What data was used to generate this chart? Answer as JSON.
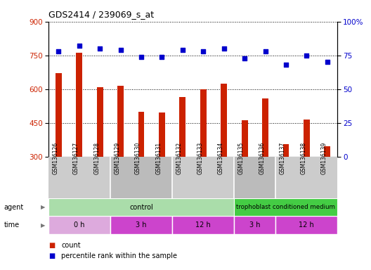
{
  "title": "GDS2414 / 239069_s_at",
  "samples": [
    "GSM136126",
    "GSM136127",
    "GSM136128",
    "GSM136129",
    "GSM136130",
    "GSM136131",
    "GSM136132",
    "GSM136133",
    "GSM136134",
    "GSM136135",
    "GSM136136",
    "GSM136137",
    "GSM136138",
    "GSM136139"
  ],
  "counts": [
    670,
    762,
    610,
    615,
    500,
    497,
    565,
    600,
    625,
    462,
    560,
    355,
    465,
    345
  ],
  "percentiles": [
    78,
    82,
    80,
    79,
    74,
    74,
    79,
    78,
    80,
    73,
    78,
    68,
    75,
    70
  ],
  "ylim_left": [
    300,
    900
  ],
  "ylim_right": [
    0,
    100
  ],
  "yticks_left": [
    300,
    450,
    600,
    750,
    900
  ],
  "yticks_right": [
    0,
    25,
    50,
    75,
    100
  ],
  "bar_color": "#cc2200",
  "dot_color": "#0000cc",
  "agent_groups": [
    {
      "label": "control",
      "start": 0,
      "end": 9,
      "color": "#aaddaa"
    },
    {
      "label": "trophoblast conditioned medium",
      "start": 9,
      "end": 14,
      "color": "#44cc44"
    }
  ],
  "time_groups": [
    {
      "label": "0 h",
      "start": 0,
      "end": 3,
      "color": "#ddaadd"
    },
    {
      "label": "3 h",
      "start": 3,
      "end": 6,
      "color": "#cc44cc"
    },
    {
      "label": "12 h",
      "start": 6,
      "end": 9,
      "color": "#cc44cc"
    },
    {
      "label": "3 h",
      "start": 9,
      "end": 11,
      "color": "#cc44cc"
    },
    {
      "label": "12 h",
      "start": 11,
      "end": 14,
      "color": "#cc44cc"
    }
  ],
  "agent_label": "agent",
  "time_label": "time",
  "legend_count_label": "count",
  "legend_pct_label": "percentile rank within the sample",
  "bar_width": 0.3,
  "background_color": "#ffffff",
  "tick_label_area_color": "#cccccc"
}
